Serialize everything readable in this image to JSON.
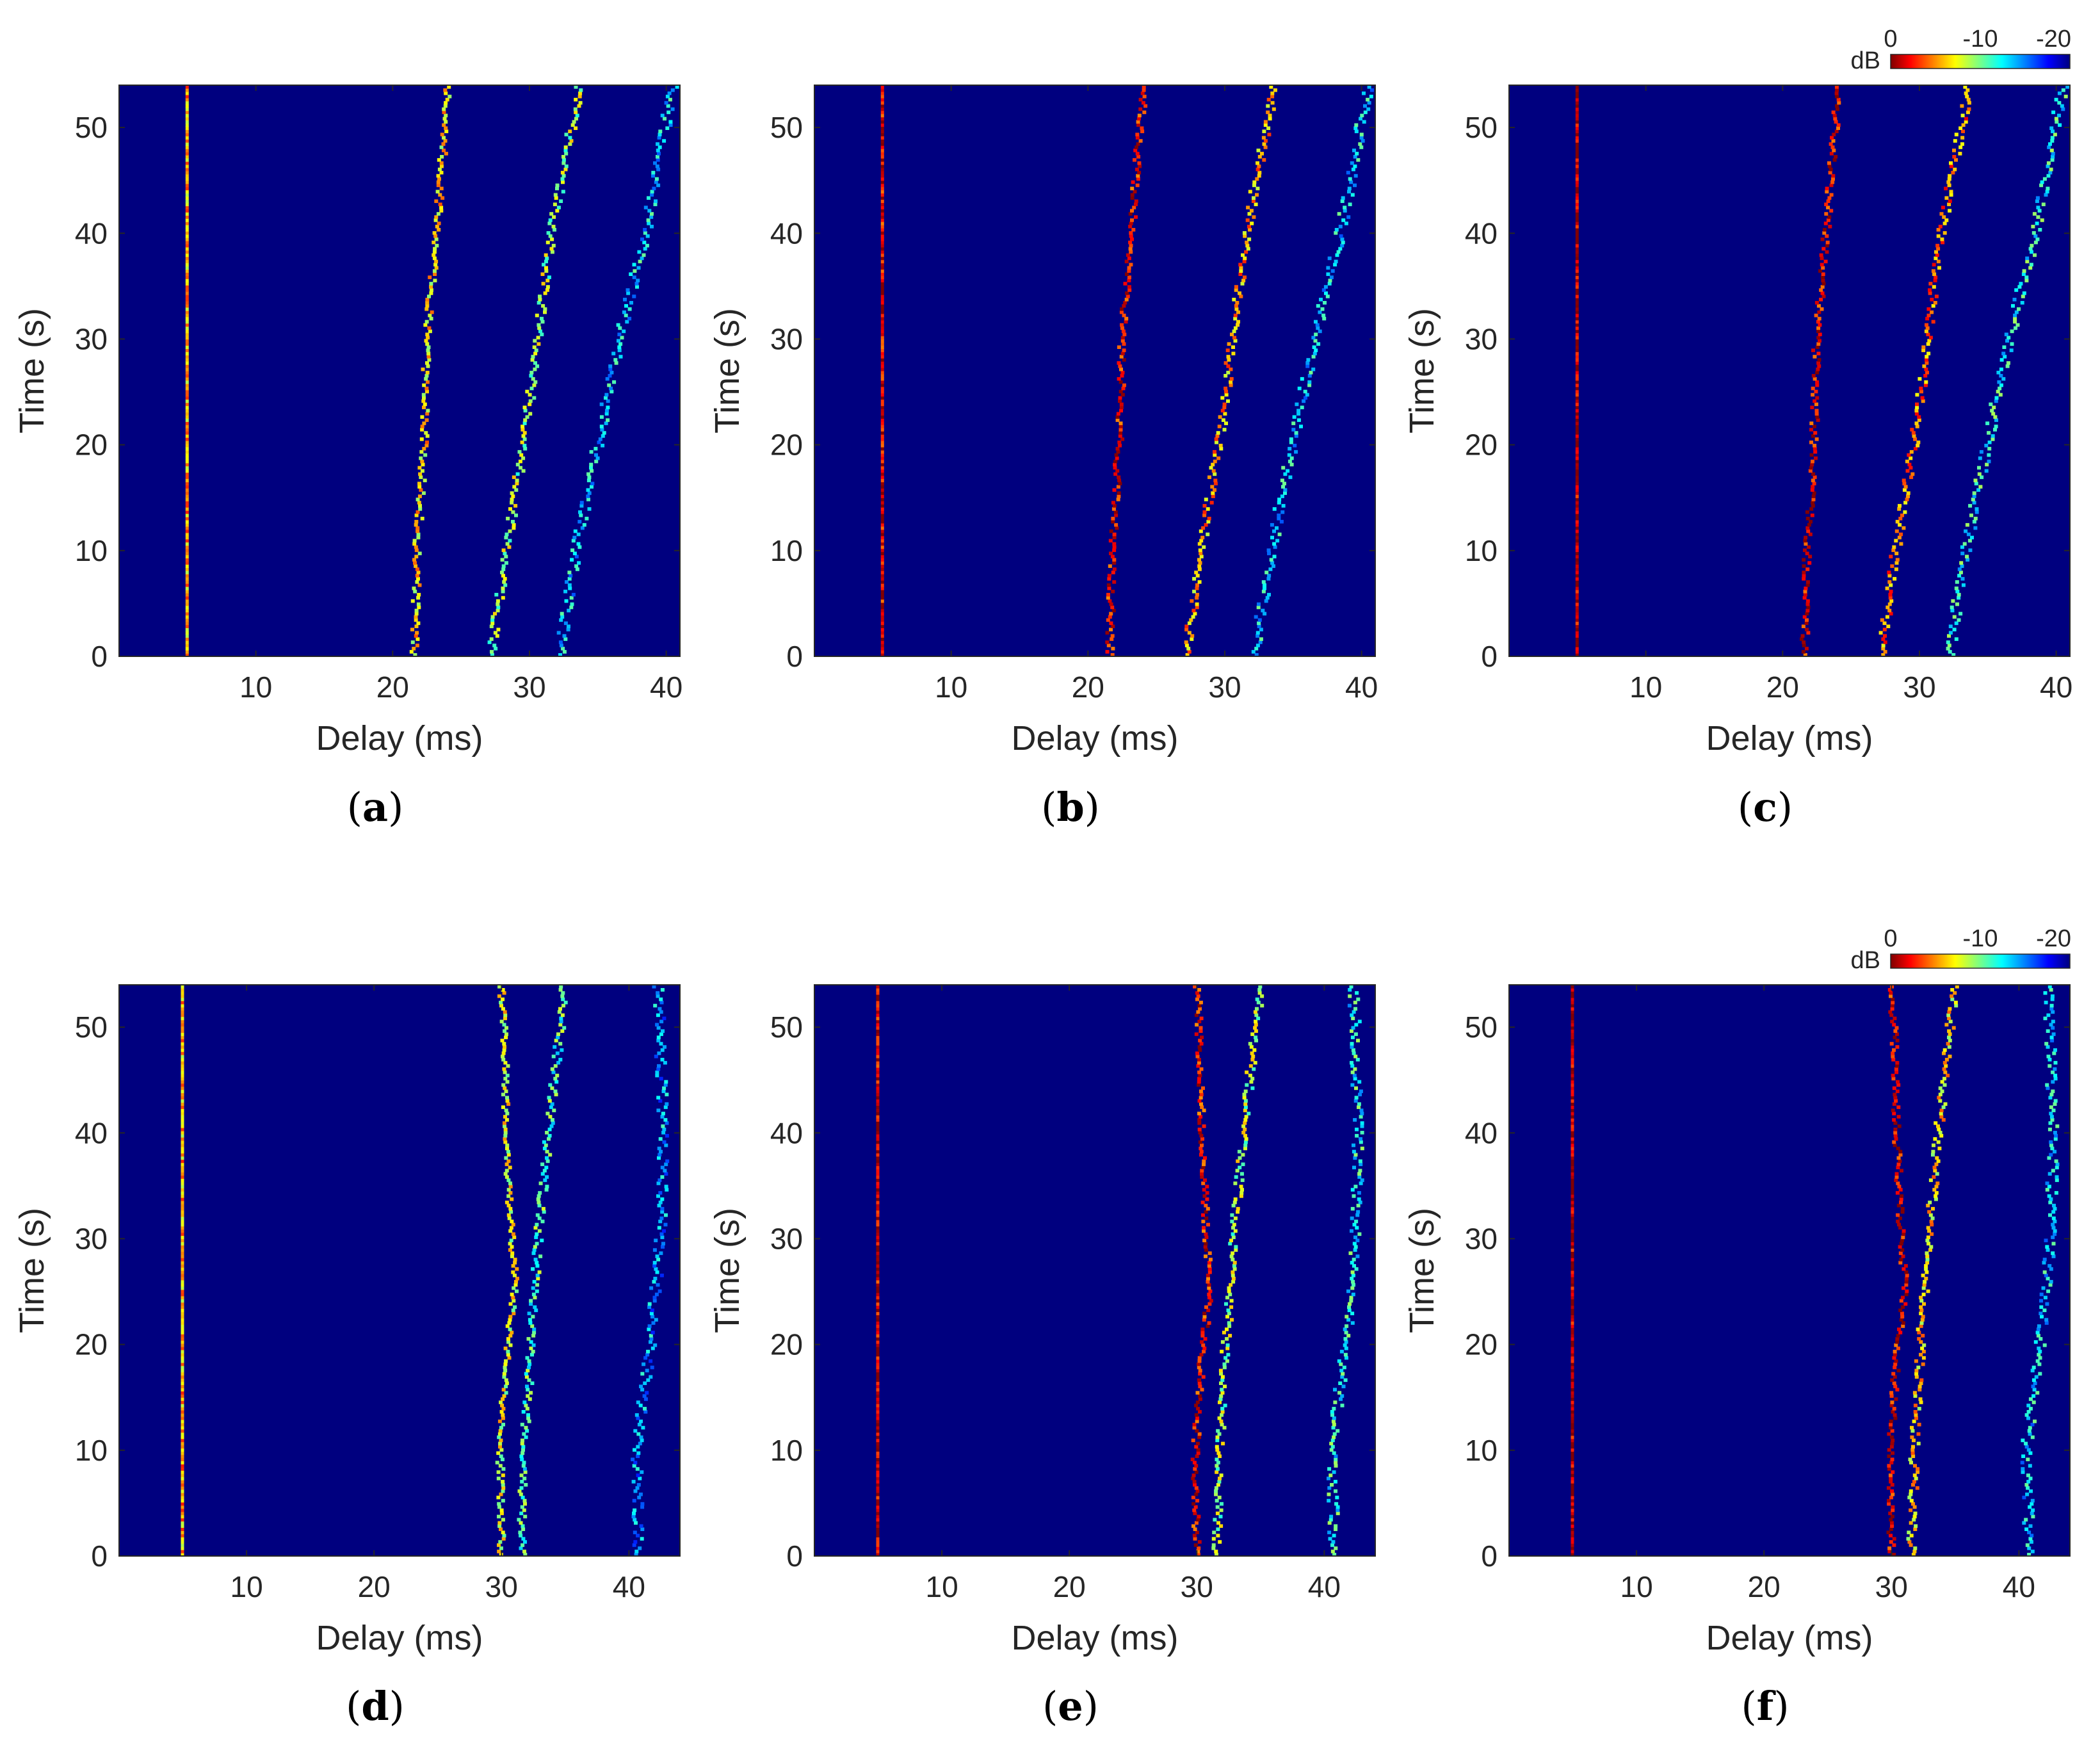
{
  "colors": {
    "background": "#00007f",
    "axis": "#262626",
    "colormap": [
      "#7f0000",
      "#ff0000",
      "#ff7f00",
      "#ffff00",
      "#7fff7f",
      "#00ffff",
      "#007fff",
      "#0000ff",
      "#00007f"
    ]
  },
  "colorbar": {
    "label": "dB",
    "ticks": [
      "0",
      "-10",
      "-20"
    ],
    "range_db": [
      0,
      -20
    ],
    "shown_on_panels": [
      "c",
      "f"
    ]
  },
  "chart_data": [
    {
      "panel": "a",
      "caption_letter": "a",
      "type": "heatmap",
      "xlabel": "Delay (ms)",
      "ylabel": "Time (s)",
      "xlim": [
        0,
        41
      ],
      "ylim": [
        0,
        54
      ],
      "xticks": [
        "10",
        "20",
        "30",
        "40"
      ],
      "yticks": [
        "0",
        "10",
        "20",
        "30",
        "40",
        "50"
      ],
      "paths": [
        {
          "delay_ms": [
            [
              0,
              5
            ],
            [
              54,
              5
            ]
          ],
          "level": 0.3
        },
        {
          "delay_ms": [
            [
              0,
              21.6
            ],
            [
              10,
              21.8
            ],
            [
              20,
              22.3
            ],
            [
              30,
              22.5
            ],
            [
              40,
              23.2
            ],
            [
              54,
              24.1
            ]
          ],
          "level": 0.35
        },
        {
          "delay_ms": [
            [
              0,
              27.2
            ],
            [
              10,
              28.3
            ],
            [
              20,
              29.6
            ],
            [
              30,
              30.6
            ],
            [
              40,
              31.6
            ],
            [
              54,
              33.7
            ]
          ],
          "level": 0.45
        },
        {
          "delay_ms": [
            [
              0,
              32.2
            ],
            [
              10,
              33.4
            ],
            [
              20,
              35.0
            ],
            [
              30,
              36.6
            ],
            [
              40,
              38.5
            ],
            [
              54,
              40.5
            ]
          ],
          "level": 0.65
        }
      ]
    },
    {
      "panel": "b",
      "caption_letter": "b",
      "type": "heatmap",
      "xlabel": "Delay (ms)",
      "ylabel": "Time (s)",
      "xlim": [
        0,
        41
      ],
      "ylim": [
        0,
        54
      ],
      "xticks": [
        "10",
        "20",
        "30",
        "40"
      ],
      "yticks": [
        "0",
        "10",
        "20",
        "30",
        "40",
        "50"
      ],
      "paths": [
        {
          "delay_ms": [
            [
              0,
              5
            ],
            [
              54,
              5
            ]
          ],
          "level": 0.1
        },
        {
          "delay_ms": [
            [
              0,
              21.6
            ],
            [
              10,
              21.8
            ],
            [
              20,
              22.3
            ],
            [
              30,
              22.5
            ],
            [
              40,
              23.2
            ],
            [
              54,
              24.1
            ]
          ],
          "level": 0.12
        },
        {
          "delay_ms": [
            [
              0,
              27.2
            ],
            [
              10,
              28.3
            ],
            [
              20,
              29.6
            ],
            [
              30,
              30.6
            ],
            [
              40,
              31.6
            ],
            [
              54,
              33.7
            ]
          ],
          "level": 0.3
        },
        {
          "delay_ms": [
            [
              0,
              32.2
            ],
            [
              10,
              33.4
            ],
            [
              20,
              35.0
            ],
            [
              30,
              36.6
            ],
            [
              40,
              38.5
            ],
            [
              54,
              40.5
            ]
          ],
          "level": 0.65
        }
      ]
    },
    {
      "panel": "c",
      "caption_letter": "c",
      "type": "heatmap",
      "xlabel": "Delay (ms)",
      "ylabel": "Time (s)",
      "xlim": [
        0,
        41
      ],
      "ylim": [
        0,
        54
      ],
      "xticks": [
        "10",
        "20",
        "30",
        "40"
      ],
      "yticks": [
        "0",
        "10",
        "20",
        "30",
        "40",
        "50"
      ],
      "paths": [
        {
          "delay_ms": [
            [
              0,
              5
            ],
            [
              54,
              5
            ]
          ],
          "level": 0.05
        },
        {
          "delay_ms": [
            [
              0,
              21.6
            ],
            [
              10,
              21.8
            ],
            [
              20,
              22.3
            ],
            [
              30,
              22.5
            ],
            [
              40,
              23.2
            ],
            [
              54,
              24.1
            ]
          ],
          "level": 0.1
        },
        {
          "delay_ms": [
            [
              0,
              27.2
            ],
            [
              10,
              28.3
            ],
            [
              20,
              29.6
            ],
            [
              30,
              30.6
            ],
            [
              40,
              31.6
            ],
            [
              54,
              33.7
            ]
          ],
          "level": 0.25
        },
        {
          "delay_ms": [
            [
              0,
              32.2
            ],
            [
              10,
              33.4
            ],
            [
              20,
              35.0
            ],
            [
              30,
              36.6
            ],
            [
              40,
              38.5
            ],
            [
              54,
              40.5
            ]
          ],
          "level": 0.6
        }
      ]
    },
    {
      "panel": "d",
      "caption_letter": "d",
      "type": "heatmap",
      "xlabel": "Delay (ms)",
      "ylabel": "Time (s)",
      "xlim": [
        0,
        44
      ],
      "ylim": [
        0,
        54
      ],
      "xticks": [
        "10",
        "20",
        "30",
        "40"
      ],
      "yticks": [
        "0",
        "10",
        "20",
        "30",
        "40",
        "50"
      ],
      "paths": [
        {
          "delay_ms": [
            [
              0,
              5
            ],
            [
              54,
              5
            ]
          ],
          "level": 0.3
        },
        {
          "delay_ms": [
            [
              0,
              30.0
            ],
            [
              10,
              29.9
            ],
            [
              20,
              30.5
            ],
            [
              25,
              31.1
            ],
            [
              30,
              30.8
            ],
            [
              40,
              30.4
            ],
            [
              50,
              30.2
            ],
            [
              54,
              30.0
            ]
          ],
          "level": 0.4
        },
        {
          "delay_ms": [
            [
              0,
              31.6
            ],
            [
              10,
              31.8
            ],
            [
              20,
              32.3
            ],
            [
              30,
              32.9
            ],
            [
              40,
              33.7
            ],
            [
              54,
              35.0
            ]
          ],
          "level": 0.55
        },
        {
          "delay_ms": [
            [
              0,
              40.8
            ],
            [
              10,
              40.6
            ],
            [
              20,
              41.7
            ],
            [
              30,
              42.5
            ],
            [
              40,
              42.7
            ],
            [
              54,
              42.3
            ]
          ],
          "level": 0.7
        }
      ]
    },
    {
      "panel": "e",
      "caption_letter": "e",
      "type": "heatmap",
      "xlabel": "Delay (ms)",
      "ylabel": "Time (s)",
      "xlim": [
        0,
        44
      ],
      "ylim": [
        0,
        54
      ],
      "xticks": [
        "10",
        "20",
        "30",
        "40"
      ],
      "yticks": [
        "0",
        "10",
        "20",
        "30",
        "40",
        "50"
      ],
      "paths": [
        {
          "delay_ms": [
            [
              0,
              5
            ],
            [
              54,
              5
            ]
          ],
          "level": 0.08
        },
        {
          "delay_ms": [
            [
              0,
              30.0
            ],
            [
              10,
              29.9
            ],
            [
              20,
              30.5
            ],
            [
              25,
              31.1
            ],
            [
              30,
              30.8
            ],
            [
              40,
              30.4
            ],
            [
              50,
              30.2
            ],
            [
              54,
              30.0
            ]
          ],
          "level": 0.12
        },
        {
          "delay_ms": [
            [
              0,
              31.6
            ],
            [
              10,
              31.8
            ],
            [
              20,
              32.3
            ],
            [
              30,
              32.9
            ],
            [
              40,
              33.7
            ],
            [
              54,
              35.0
            ]
          ],
          "level": 0.45
        },
        {
          "delay_ms": [
            [
              0,
              40.8
            ],
            [
              10,
              40.6
            ],
            [
              20,
              41.7
            ],
            [
              30,
              42.5
            ],
            [
              40,
              42.7
            ],
            [
              54,
              42.3
            ]
          ],
          "level": 0.6
        }
      ]
    },
    {
      "panel": "f",
      "caption_letter": "f",
      "type": "heatmap",
      "xlabel": "Delay (ms)",
      "ylabel": "Time (s)",
      "xlim": [
        0,
        44
      ],
      "ylim": [
        0,
        54
      ],
      "xticks": [
        "10",
        "20",
        "30",
        "40"
      ],
      "yticks": [
        "0",
        "10",
        "20",
        "30",
        "40",
        "50"
      ],
      "paths": [
        {
          "delay_ms": [
            [
              0,
              5
            ],
            [
              54,
              5
            ]
          ],
          "level": 0.05
        },
        {
          "delay_ms": [
            [
              0,
              30.0
            ],
            [
              10,
              29.9
            ],
            [
              20,
              30.5
            ],
            [
              25,
              31.1
            ],
            [
              30,
              30.8
            ],
            [
              40,
              30.4
            ],
            [
              50,
              30.2
            ],
            [
              54,
              30.0
            ]
          ],
          "level": 0.1
        },
        {
          "delay_ms": [
            [
              0,
              31.6
            ],
            [
              10,
              31.8
            ],
            [
              20,
              32.3
            ],
            [
              30,
              32.9
            ],
            [
              40,
              33.7
            ],
            [
              54,
              35.0
            ]
          ],
          "level": 0.35
        },
        {
          "delay_ms": [
            [
              0,
              40.8
            ],
            [
              10,
              40.6
            ],
            [
              20,
              41.7
            ],
            [
              30,
              42.5
            ],
            [
              40,
              42.7
            ],
            [
              54,
              42.3
            ]
          ],
          "level": 0.65
        }
      ]
    }
  ]
}
